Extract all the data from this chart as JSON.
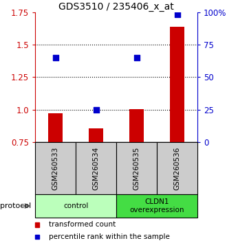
{
  "title": "GDS3510 / 235406_x_at",
  "samples": [
    "GSM260533",
    "GSM260534",
    "GSM260535",
    "GSM260536"
  ],
  "bar_values": [
    0.97,
    0.855,
    1.005,
    1.635
  ],
  "percentile_values": [
    65,
    25,
    65,
    98
  ],
  "bar_color": "#cc0000",
  "percentile_color": "#0000cc",
  "ylim_left": [
    0.75,
    1.75
  ],
  "ylim_right": [
    0,
    100
  ],
  "yticks_left": [
    0.75,
    1.0,
    1.25,
    1.5,
    1.75
  ],
  "yticks_right": [
    0,
    25,
    50,
    75,
    100
  ],
  "ytick_labels_right": [
    "0",
    "25",
    "50",
    "75",
    "100%"
  ],
  "dotted_lines": [
    1.5,
    1.25,
    1.0
  ],
  "groups": [
    {
      "label": "control",
      "samples": [
        0,
        1
      ],
      "color": "#bbffbb"
    },
    {
      "label": "CLDN1\noverexpression",
      "samples": [
        2,
        3
      ],
      "color": "#44dd44"
    }
  ],
  "protocol_label": "protocol",
  "legend": [
    {
      "color": "#cc0000",
      "label": "transformed count"
    },
    {
      "color": "#0000cc",
      "label": "percentile rank within the sample"
    }
  ],
  "bar_width": 0.35,
  "background_color": "#ffffff",
  "sample_box_color": "#cccccc",
  "title_fontsize": 10,
  "tick_fontsize": 8.5
}
